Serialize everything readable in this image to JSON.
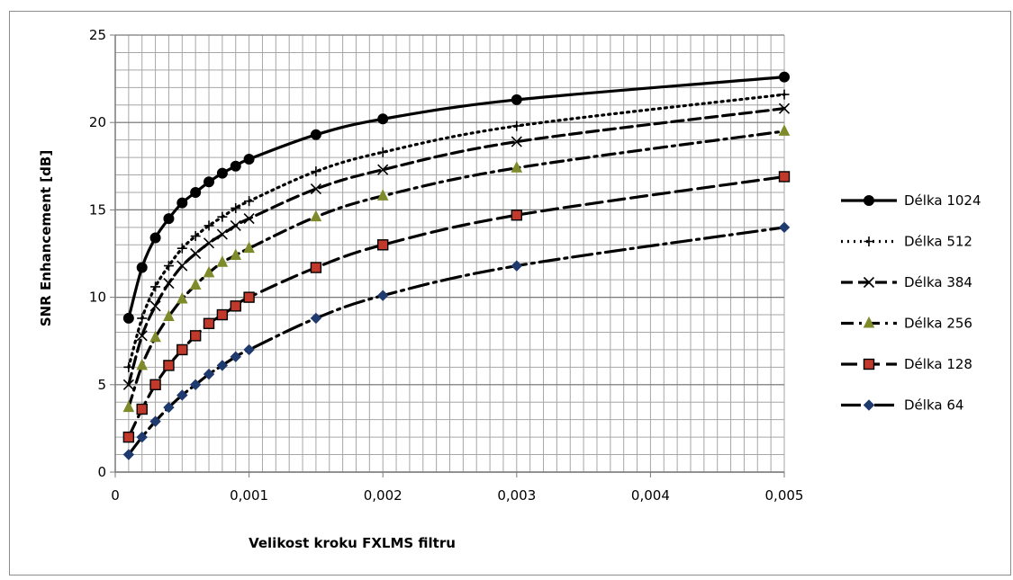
{
  "chart_data": {
    "type": "line",
    "title": "",
    "xlabel": "Velikost kroku FXLMS filtru",
    "ylabel": "SNR Enhancement [dB]",
    "xlim": [
      0,
      0.005
    ],
    "ylim": [
      0,
      25
    ],
    "x_ticks": [
      0,
      0.001,
      0.002,
      0.003,
      0.004,
      0.005
    ],
    "x_tick_labels": [
      "0",
      "0,001",
      "0,002",
      "0,003",
      "0,004",
      "0,005"
    ],
    "y_ticks": [
      0,
      5,
      10,
      15,
      20,
      25
    ],
    "y_tick_labels": [
      "0",
      "5",
      "10",
      "15",
      "20",
      "25"
    ],
    "grid": true,
    "legend_position": "right",
    "series": [
      {
        "name": "Délka 1024",
        "color": "#000000",
        "marker": "circle",
        "dash": "solid",
        "x": [
          0.0001,
          0.0002,
          0.0003,
          0.0004,
          0.0005,
          0.0006,
          0.0007,
          0.0008,
          0.0009,
          0.001,
          0.0015,
          0.002,
          0.003,
          0.005
        ],
        "y": [
          8.8,
          11.7,
          13.4,
          14.5,
          15.4,
          16.0,
          16.6,
          17.1,
          17.5,
          17.9,
          19.3,
          20.2,
          21.3,
          22.6
        ]
      },
      {
        "name": "Délka 512",
        "color": "#000000",
        "marker": "plus",
        "dash": "dotted",
        "x": [
          0.0001,
          0.0002,
          0.0003,
          0.0004,
          0.0005,
          0.0006,
          0.0007,
          0.0008,
          0.0009,
          0.001,
          0.0015,
          0.002,
          0.003,
          0.005
        ],
        "y": [
          6.0,
          8.8,
          10.6,
          11.8,
          12.8,
          13.5,
          14.1,
          14.6,
          15.1,
          15.5,
          17.2,
          18.3,
          19.8,
          21.6
        ]
      },
      {
        "name": "Délka 384",
        "color": "#000000",
        "marker": "cross",
        "dash": "dashed",
        "x": [
          0.0001,
          0.0002,
          0.0003,
          0.0004,
          0.0005,
          0.0006,
          0.0007,
          0.0008,
          0.0009,
          0.001,
          0.0015,
          0.002,
          0.003,
          0.005
        ],
        "y": [
          5.0,
          7.8,
          9.5,
          10.8,
          11.8,
          12.5,
          13.1,
          13.6,
          14.1,
          14.5,
          16.2,
          17.3,
          18.9,
          20.8
        ]
      },
      {
        "name": "Délka 256",
        "color": "#7f8b2a",
        "marker": "triangle",
        "dash": "dashdot",
        "x": [
          0.0001,
          0.0002,
          0.0003,
          0.0004,
          0.0005,
          0.0006,
          0.0007,
          0.0008,
          0.0009,
          0.001,
          0.0015,
          0.002,
          0.003,
          0.005
        ],
        "y": [
          3.7,
          6.1,
          7.7,
          8.9,
          9.9,
          10.7,
          11.4,
          12.0,
          12.4,
          12.8,
          14.6,
          15.8,
          17.4,
          19.5
        ]
      },
      {
        "name": "Délka 128",
        "color": "#9b1c1c",
        "marker": "square",
        "dash": "longdash",
        "x": [
          0.0001,
          0.0002,
          0.0003,
          0.0004,
          0.0005,
          0.0006,
          0.0007,
          0.0008,
          0.0009,
          0.001,
          0.0015,
          0.002,
          0.003,
          0.005
        ],
        "y": [
          2.0,
          3.6,
          5.0,
          6.1,
          7.0,
          7.8,
          8.5,
          9.0,
          9.5,
          10.0,
          11.7,
          13.0,
          14.7,
          16.9
        ]
      },
      {
        "name": "Délka 64",
        "color": "#1f3a6e",
        "marker": "diamond",
        "dash": "dashdotlong",
        "x": [
          0.0001,
          0.0002,
          0.0003,
          0.0004,
          0.0005,
          0.0006,
          0.0007,
          0.0008,
          0.0009,
          0.001,
          0.0015,
          0.002,
          0.003,
          0.005
        ],
        "y": [
          1.0,
          2.0,
          2.9,
          3.7,
          4.4,
          5.0,
          5.6,
          6.1,
          6.6,
          7.0,
          8.8,
          10.1,
          11.8,
          14.0
        ]
      }
    ]
  }
}
